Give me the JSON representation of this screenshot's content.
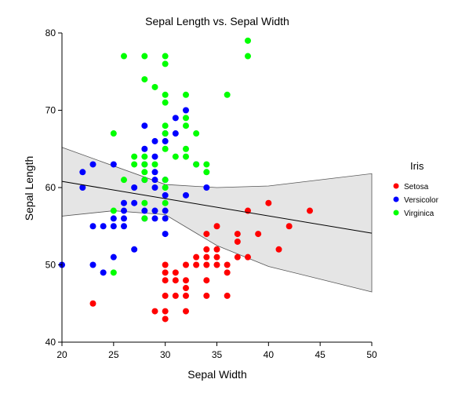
{
  "chart_data": {
    "type": "scatter",
    "title": "Sepal Length vs. Sepal Width",
    "xlabel": "Sepal Width",
    "ylabel": "Sepal Length",
    "xlim": [
      20,
      50
    ],
    "ylim": [
      40,
      80
    ],
    "xticks": [
      20,
      25,
      30,
      35,
      40,
      45,
      50
    ],
    "yticks": [
      40,
      50,
      60,
      70,
      80
    ],
    "grid": false,
    "legend": {
      "title": "Iris",
      "placement": "right"
    },
    "series": [
      {
        "name": "Setosa",
        "color": "#ff0000",
        "points": [
          [
            23,
            45
          ],
          [
            29,
            44
          ],
          [
            30,
            43
          ],
          [
            30,
            44
          ],
          [
            30,
            46
          ],
          [
            30,
            48
          ],
          [
            30,
            49
          ],
          [
            30,
            50
          ],
          [
            31,
            46
          ],
          [
            31,
            48
          ],
          [
            31,
            49
          ],
          [
            32,
            44
          ],
          [
            32,
            46
          ],
          [
            32,
            47
          ],
          [
            32,
            48
          ],
          [
            32,
            50
          ],
          [
            33,
            50
          ],
          [
            33,
            51
          ],
          [
            34,
            46
          ],
          [
            34,
            48
          ],
          [
            34,
            50
          ],
          [
            34,
            51
          ],
          [
            34,
            52
          ],
          [
            34,
            54
          ],
          [
            35,
            50
          ],
          [
            35,
            51
          ],
          [
            35,
            52
          ],
          [
            35,
            55
          ],
          [
            36,
            46
          ],
          [
            36,
            49
          ],
          [
            36,
            50
          ],
          [
            37,
            51
          ],
          [
            37,
            53
          ],
          [
            37,
            54
          ],
          [
            38,
            51
          ],
          [
            38,
            57
          ],
          [
            39,
            54
          ],
          [
            40,
            58
          ],
          [
            41,
            52
          ],
          [
            42,
            55
          ],
          [
            44,
            57
          ]
        ]
      },
      {
        "name": "Versicolor",
        "color": "#0000ff",
        "points": [
          [
            20,
            50
          ],
          [
            22,
            60
          ],
          [
            22,
            62
          ],
          [
            23,
            50
          ],
          [
            23,
            55
          ],
          [
            23,
            63
          ],
          [
            24,
            49
          ],
          [
            24,
            55
          ],
          [
            25,
            51
          ],
          [
            25,
            55
          ],
          [
            25,
            56
          ],
          [
            25,
            63
          ],
          [
            26,
            55
          ],
          [
            26,
            56
          ],
          [
            26,
            57
          ],
          [
            26,
            58
          ],
          [
            27,
            52
          ],
          [
            27,
            58
          ],
          [
            27,
            60
          ],
          [
            28,
            56
          ],
          [
            28,
            57
          ],
          [
            28,
            61
          ],
          [
            28,
            63
          ],
          [
            28,
            65
          ],
          [
            28,
            68
          ],
          [
            29,
            56
          ],
          [
            29,
            57
          ],
          [
            29,
            60
          ],
          [
            29,
            61
          ],
          [
            29,
            62
          ],
          [
            29,
            64
          ],
          [
            29,
            66
          ],
          [
            30,
            54
          ],
          [
            30,
            56
          ],
          [
            30,
            57
          ],
          [
            30,
            59
          ],
          [
            30,
            61
          ],
          [
            30,
            66
          ],
          [
            30,
            67
          ],
          [
            31,
            67
          ],
          [
            31,
            69
          ],
          [
            32,
            59
          ],
          [
            32,
            70
          ],
          [
            33,
            63
          ],
          [
            34,
            60
          ]
        ]
      },
      {
        "name": "Virginica",
        "color": "#00ff00",
        "points": [
          [
            25,
            49
          ],
          [
            25,
            57
          ],
          [
            25,
            67
          ],
          [
            26,
            61
          ],
          [
            26,
            77
          ],
          [
            27,
            63
          ],
          [
            27,
            64
          ],
          [
            28,
            56
          ],
          [
            28,
            58
          ],
          [
            28,
            61
          ],
          [
            28,
            62
          ],
          [
            28,
            63
          ],
          [
            28,
            64
          ],
          [
            28,
            74
          ],
          [
            28,
            77
          ],
          [
            29,
            63
          ],
          [
            29,
            73
          ],
          [
            30,
            58
          ],
          [
            30,
            60
          ],
          [
            30,
            61
          ],
          [
            30,
            65
          ],
          [
            30,
            67
          ],
          [
            30,
            68
          ],
          [
            30,
            71
          ],
          [
            30,
            72
          ],
          [
            30,
            76
          ],
          [
            30,
            77
          ],
          [
            31,
            64
          ],
          [
            32,
            64
          ],
          [
            32,
            65
          ],
          [
            32,
            68
          ],
          [
            32,
            69
          ],
          [
            32,
            72
          ],
          [
            33,
            63
          ],
          [
            33,
            67
          ],
          [
            34,
            62
          ],
          [
            34,
            63
          ],
          [
            36,
            72
          ],
          [
            38,
            77
          ],
          [
            38,
            79
          ]
        ]
      }
    ],
    "regression": {
      "line": [
        [
          20,
          60.8
        ],
        [
          50,
          54.1
        ]
      ],
      "upper_band": [
        [
          20,
          65.2
        ],
        [
          30,
          60.4
        ],
        [
          35,
          60.0
        ],
        [
          40,
          60.2
        ],
        [
          50,
          61.8
        ]
      ],
      "lower_band": [
        [
          20,
          56.3
        ],
        [
          25,
          57.0
        ],
        [
          30,
          56.5
        ],
        [
          35,
          52.5
        ],
        [
          40,
          49.8
        ],
        [
          50,
          46.5
        ]
      ],
      "band_color": "#e5e5e5"
    }
  }
}
